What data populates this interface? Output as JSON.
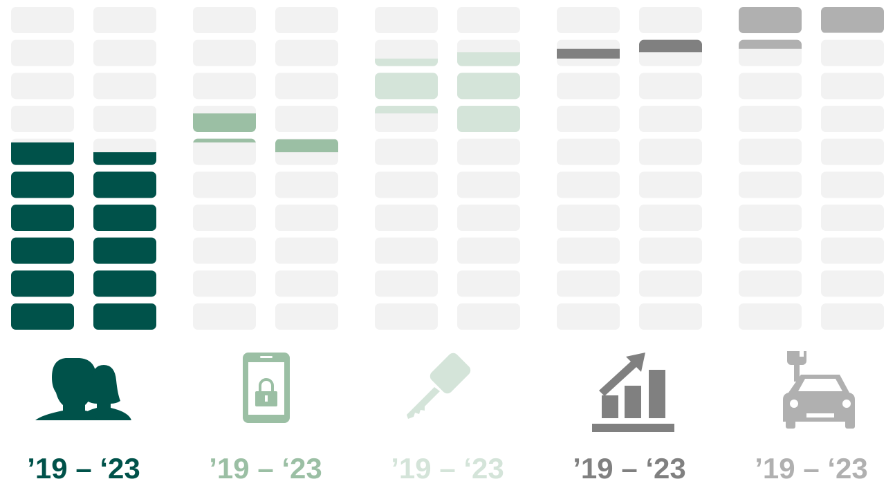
{
  "chart_data": {
    "type": "range-bar",
    "ylim": [
      0,
      100
    ],
    "cell_color": "#f2f2f2",
    "series": [
      {
        "label": "’19 – ‘23",
        "color": "#00524a",
        "low": [
          0,
          0
        ],
        "high": [
          58,
          55
        ]
      },
      {
        "label": "’19 – ‘23",
        "color": "#9bbfa4",
        "low": [
          58,
          55
        ],
        "high": [
          67,
          59
        ]
      },
      {
        "label": "’19 – ‘23",
        "color": "#d4e4d9",
        "low": [
          67,
          61
        ],
        "high": [
          84,
          86
        ]
      },
      {
        "label": "’19 – ‘23",
        "color": "#808080",
        "low": [
          84,
          86
        ],
        "high": [
          87,
          90
        ]
      },
      {
        "label": "’19 – ‘23",
        "color": "#b0b0b0",
        "low": [
          87,
          92
        ],
        "high": [
          100,
          100
        ]
      }
    ]
  }
}
